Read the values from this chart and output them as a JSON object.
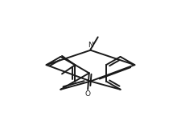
{
  "background": "#ffffff",
  "line_color": "#1a1a1a",
  "line_width": 1.4,
  "text_color": "#1a1a1a",
  "font_size_atom": 6.5,
  "N_label": "N",
  "O_label": "O",
  "s": 0.155
}
